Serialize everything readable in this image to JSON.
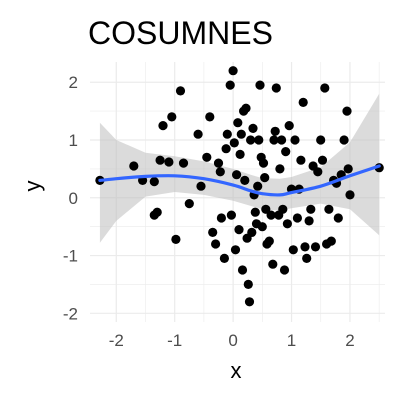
{
  "chart_data": {
    "type": "scatter",
    "title": "COSUMNES",
    "xlabel": "x",
    "ylabel": "y",
    "xlim": [
      -2.45,
      2.6
    ],
    "ylim": [
      -2.15,
      2.35
    ],
    "x_ticks": [
      "-2",
      "-1",
      "0",
      "1",
      "2"
    ],
    "y_ticks": [
      "-2",
      "-1",
      "0",
      "1",
      "2"
    ],
    "grid": true,
    "legend": "none",
    "colors": {
      "points": "#000000",
      "smooth": "#3366ff",
      "band": "#bdbdbd",
      "grid": "#ebebeb"
    },
    "points": [
      [
        -2.28,
        0.3
      ],
      [
        -1.7,
        0.55
      ],
      [
        -1.55,
        0.3
      ],
      [
        -1.35,
        0.28
      ],
      [
        -1.35,
        -0.3
      ],
      [
        -1.3,
        -0.25
      ],
      [
        -1.25,
        0.65
      ],
      [
        -1.2,
        1.25
      ],
      [
        -1.1,
        0.62
      ],
      [
        -1.05,
        1.4
      ],
      [
        -0.98,
        -0.72
      ],
      [
        -0.9,
        1.85
      ],
      [
        -0.85,
        0.6
      ],
      [
        -0.75,
        -0.1
      ],
      [
        -0.6,
        1.1
      ],
      [
        -0.55,
        0.2
      ],
      [
        -0.45,
        0.7
      ],
      [
        -0.4,
        1.4
      ],
      [
        -0.35,
        -0.6
      ],
      [
        -0.3,
        -0.8
      ],
      [
        -0.25,
        0.6
      ],
      [
        -0.22,
        0.45
      ],
      [
        -0.2,
        -0.35
      ],
      [
        -0.15,
        -1.05
      ],
      [
        -0.12,
        0.85
      ],
      [
        -0.1,
        1.1
      ],
      [
        -0.05,
        1.95
      ],
      [
        -0.03,
        -0.3
      ],
      [
        0.0,
        2.2
      ],
      [
        0.02,
        0.95
      ],
      [
        0.04,
        -0.9
      ],
      [
        0.06,
        0.4
      ],
      [
        0.08,
        1.3
      ],
      [
        0.1,
        -0.55
      ],
      [
        0.12,
        0.75
      ],
      [
        0.14,
        1.1
      ],
      [
        0.16,
        -1.25
      ],
      [
        0.18,
        1.5
      ],
      [
        0.2,
        0.3
      ],
      [
        0.22,
        1.55
      ],
      [
        0.24,
        -0.7
      ],
      [
        0.26,
        -1.5
      ],
      [
        0.28,
        -1.8
      ],
      [
        0.3,
        1.0
      ],
      [
        0.32,
        -0.6
      ],
      [
        0.34,
        1.2
      ],
      [
        0.36,
        0.05
      ],
      [
        0.38,
        -0.25
      ],
      [
        0.4,
        -0.45
      ],
      [
        0.42,
        0.2
      ],
      [
        0.44,
        1.0
      ],
      [
        0.46,
        1.95
      ],
      [
        0.48,
        0.7
      ],
      [
        0.5,
        -0.5
      ],
      [
        0.52,
        0.6
      ],
      [
        0.54,
        0.35
      ],
      [
        0.56,
        -0.2
      ],
      [
        0.58,
        -0.8
      ],
      [
        0.62,
        -0.75
      ],
      [
        0.65,
        -0.3
      ],
      [
        0.68,
        -1.15
      ],
      [
        0.7,
        1.0
      ],
      [
        0.72,
        1.15
      ],
      [
        0.74,
        1.9
      ],
      [
        0.78,
        -0.3
      ],
      [
        0.8,
        0.5
      ],
      [
        0.83,
        1.0
      ],
      [
        0.85,
        -0.2
      ],
      [
        0.88,
        -1.25
      ],
      [
        0.9,
        0.8
      ],
      [
        0.93,
        -0.45
      ],
      [
        0.96,
        1.25
      ],
      [
        1.0,
        0.15
      ],
      [
        1.03,
        -0.9
      ],
      [
        1.06,
        1.0
      ],
      [
        1.1,
        -0.35
      ],
      [
        1.13,
        0.15
      ],
      [
        1.16,
        0.65
      ],
      [
        1.2,
        1.65
      ],
      [
        1.23,
        -0.85
      ],
      [
        1.26,
        -1.05
      ],
      [
        1.3,
        -0.4
      ],
      [
        1.33,
        -0.2
      ],
      [
        1.37,
        0.55
      ],
      [
        1.41,
        -0.85
      ],
      [
        1.45,
        0.45
      ],
      [
        1.5,
        1.0
      ],
      [
        1.53,
        0.65
      ],
      [
        1.57,
        1.9
      ],
      [
        1.6,
        -0.8
      ],
      [
        1.64,
        -0.2
      ],
      [
        1.68,
        -0.75
      ],
      [
        1.72,
        0.3
      ],
      [
        1.77,
        0.25
      ],
      [
        1.8,
        -0.35
      ],
      [
        1.85,
        0.4
      ],
      [
        1.9,
        1.0
      ],
      [
        1.95,
        1.5
      ],
      [
        1.97,
        0.5
      ],
      [
        2.0,
        0.05
      ],
      [
        2.5,
        0.52
      ]
    ],
    "smooth_line": {
      "x": [
        -2.28,
        -2.0,
        -1.5,
        -1.0,
        -0.5,
        0.0,
        0.3,
        0.5,
        0.8,
        1.0,
        1.5,
        2.0,
        2.5
      ],
      "y": [
        0.3,
        0.33,
        0.37,
        0.38,
        0.33,
        0.22,
        0.12,
        0.07,
        0.05,
        0.09,
        0.2,
        0.38,
        0.55
      ],
      "band_lower": [
        -0.78,
        -0.4,
        0.02,
        0.1,
        0.05,
        -0.05,
        -0.14,
        -0.2,
        -0.22,
        -0.18,
        -0.1,
        -0.2,
        -0.65
      ],
      "band_upper": [
        1.3,
        1.0,
        0.78,
        0.72,
        0.63,
        0.5,
        0.4,
        0.34,
        0.33,
        0.36,
        0.53,
        0.96,
        1.8
      ]
    }
  }
}
